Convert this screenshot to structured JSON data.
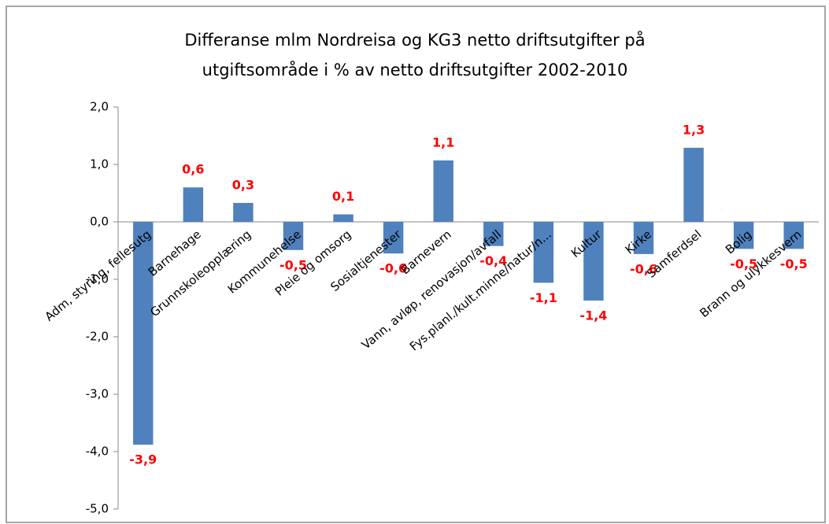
{
  "chart_data": {
    "type": "bar",
    "title": [
      "Differanse mlm Nordreisa og KG3 netto driftsutgifter på",
      "utgiftsområde i % av netto driftsutgifter 2002-2010"
    ],
    "categories": [
      "Adm, styring, fellesutg",
      "Barnehage",
      "Grunnskoleopplæring",
      "Kommunehelse",
      "Pleie og omsorg",
      "Sosialtjenester",
      "Barnevern",
      "Vann, avløp, renovasjon/avfall",
      "Fys.planl./kult.minne/natur/n...",
      "Kultur",
      "Kirke",
      "Samferdsel",
      "Bolig",
      "Brann og ulykkesvern"
    ],
    "values": [
      -3.88,
      0.6,
      0.33,
      -0.49,
      0.13,
      -0.55,
      1.07,
      -0.42,
      -1.06,
      -1.37,
      -0.56,
      1.29,
      -0.47,
      -0.47
    ],
    "value_labels": [
      "-3,9",
      "0,6",
      "0,3",
      "-0,5",
      "0,1",
      "-0,6",
      "1,1",
      "-0,4",
      "-1,1",
      "-1,4",
      "-0,6",
      "1,3",
      "-0,5",
      "-0,5"
    ],
    "color": "#4f81bd",
    "label_color": "#ff0000",
    "ylim": [
      -5,
      2
    ],
    "yticks": [
      {
        "value": 2,
        "label": "2,0"
      },
      {
        "value": 1,
        "label": "1,0"
      },
      {
        "value": 0,
        "label": "0,0"
      },
      {
        "value": -1,
        "label": "-1,0"
      },
      {
        "value": -2,
        "label": "-2,0"
      },
      {
        "value": -3,
        "label": "-3,0"
      },
      {
        "value": -4,
        "label": "-4,0"
      },
      {
        "value": -5,
        "label": "-5,0"
      }
    ],
    "grid": false
  }
}
